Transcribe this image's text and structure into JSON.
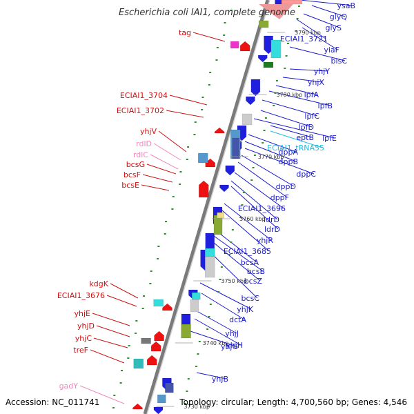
{
  "title": "Escherichia coli IAI1, complete genome",
  "footer": {
    "accession": "Accession: NC_011741",
    "topology": "Topology: circular; Length: 4,700,560 bp; Genes: 4,546"
  },
  "colors": {
    "plus_label": "#1a1acc",
    "minus_label": "#cc1111",
    "trna_label": "#22bbdd",
    "pseudo_label": "#ee88bb",
    "backbone": "#888888"
  },
  "ticks": [
    "3790 kbp",
    "3780 kbp",
    "3770 kbp",
    "3760 kbp",
    "3750 kbp",
    "3740 kbp",
    "3730 kbp"
  ],
  "labels_right": [
    {
      "text": "ysaB",
      "kind": "plus"
    },
    {
      "text": "glyQ",
      "kind": "plus"
    },
    {
      "text": "glyS",
      "kind": "plus"
    },
    {
      "text": "ECIAI1_3721",
      "kind": "plus"
    },
    {
      "text": "yiaF",
      "kind": "plus"
    },
    {
      "text": "bisC",
      "kind": "plus"
    },
    {
      "text": "yhjY",
      "kind": "plus"
    },
    {
      "text": "yhjX",
      "kind": "plus"
    },
    {
      "text": "lpfA",
      "kind": "plus"
    },
    {
      "text": "lpfB",
      "kind": "plus"
    },
    {
      "text": "lpfC",
      "kind": "plus"
    },
    {
      "text": "lpfD",
      "kind": "plus"
    },
    {
      "text": "lpfE",
      "kind": "plus"
    },
    {
      "text": "eptB",
      "kind": "plus"
    },
    {
      "text": "ECIAI1_tRNA55",
      "kind": "trna"
    },
    {
      "text": "dppA",
      "kind": "plus"
    },
    {
      "text": "dppB",
      "kind": "plus"
    },
    {
      "text": "dppC",
      "kind": "plus"
    },
    {
      "text": "dppD",
      "kind": "plus"
    },
    {
      "text": "dppF",
      "kind": "plus"
    },
    {
      "text": "ECIAI1_3696",
      "kind": "plus"
    },
    {
      "text": "ldrD",
      "kind": "plus"
    },
    {
      "text": "ldrD",
      "kind": "plus"
    },
    {
      "text": "yhjR",
      "kind": "plus"
    },
    {
      "text": "ECIAI1_3685",
      "kind": "plus"
    },
    {
      "text": "bcsA",
      "kind": "plus"
    },
    {
      "text": "bcsB",
      "kind": "plus"
    },
    {
      "text": "bcsZ",
      "kind": "plus"
    },
    {
      "text": "bcsC",
      "kind": "plus"
    },
    {
      "text": "yhjK",
      "kind": "plus"
    },
    {
      "text": "dctA",
      "kind": "plus"
    },
    {
      "text": "yhjJ",
      "kind": "plus"
    },
    {
      "text": "yhjH",
      "kind": "plus"
    },
    {
      "text": "yhjG",
      "kind": "plus"
    },
    {
      "text": "yhjB",
      "kind": "plus"
    }
  ],
  "labels_left": [
    {
      "text": "tag",
      "kind": "minus"
    },
    {
      "text": "ECIAI1_3704",
      "kind": "minus"
    },
    {
      "text": "ECIAI1_3702",
      "kind": "minus"
    },
    {
      "text": "yhjV",
      "kind": "minus"
    },
    {
      "text": "rdlD",
      "kind": "pseudo"
    },
    {
      "text": "rdlC",
      "kind": "pseudo"
    },
    {
      "text": "bcsG",
      "kind": "minus"
    },
    {
      "text": "bcsF",
      "kind": "minus"
    },
    {
      "text": "bcsE",
      "kind": "minus"
    },
    {
      "text": "kdgK",
      "kind": "minus"
    },
    {
      "text": "ECIAI1_3676",
      "kind": "minus"
    },
    {
      "text": "yhjE",
      "kind": "minus"
    },
    {
      "text": "yhjD",
      "kind": "minus"
    },
    {
      "text": "yhjC",
      "kind": "minus"
    },
    {
      "text": "treF",
      "kind": "minus"
    },
    {
      "text": "gadY",
      "kind": "pseudo"
    }
  ]
}
